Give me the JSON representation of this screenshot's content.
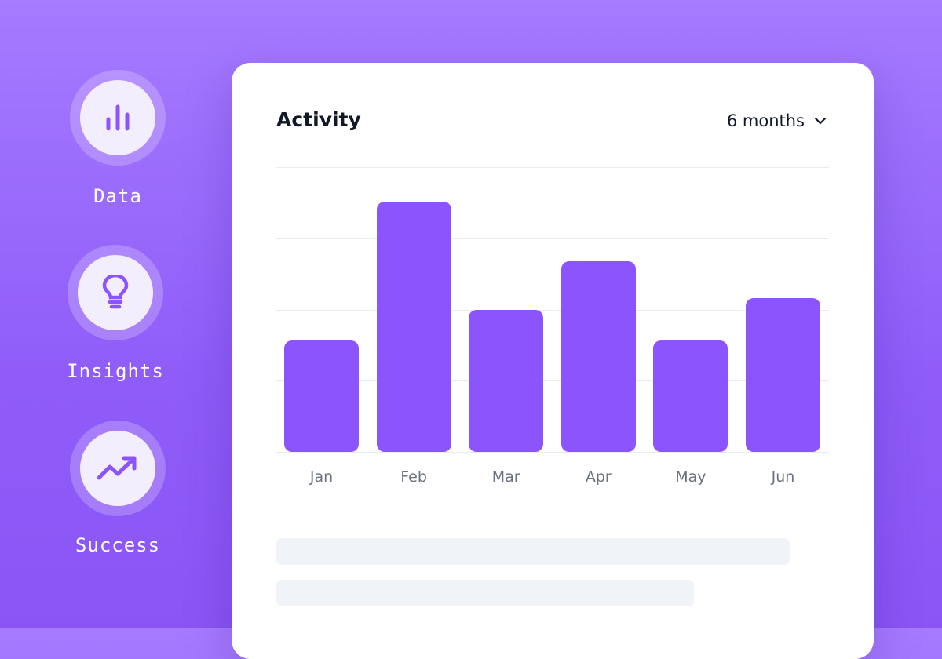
{
  "features": [
    {
      "label": "Data",
      "icon": "bar-chart-icon"
    },
    {
      "label": "Insights",
      "icon": "lightbulb-icon"
    },
    {
      "label": "Success",
      "icon": "trending-up-icon"
    }
  ],
  "card": {
    "title": "Activity",
    "range_label": "6 months"
  },
  "colors": {
    "accent": "#8c54fd",
    "background": "#9b6bff"
  },
  "chart_data": {
    "type": "bar",
    "title": "Activity",
    "categories": [
      "Jan",
      "Feb",
      "Mar",
      "Apr",
      "May",
      "Jun"
    ],
    "values": [
      39,
      88,
      50,
      67,
      39,
      54
    ],
    "ylim": [
      0,
      100
    ],
    "grid": true,
    "xlabel": "",
    "ylabel": ""
  }
}
